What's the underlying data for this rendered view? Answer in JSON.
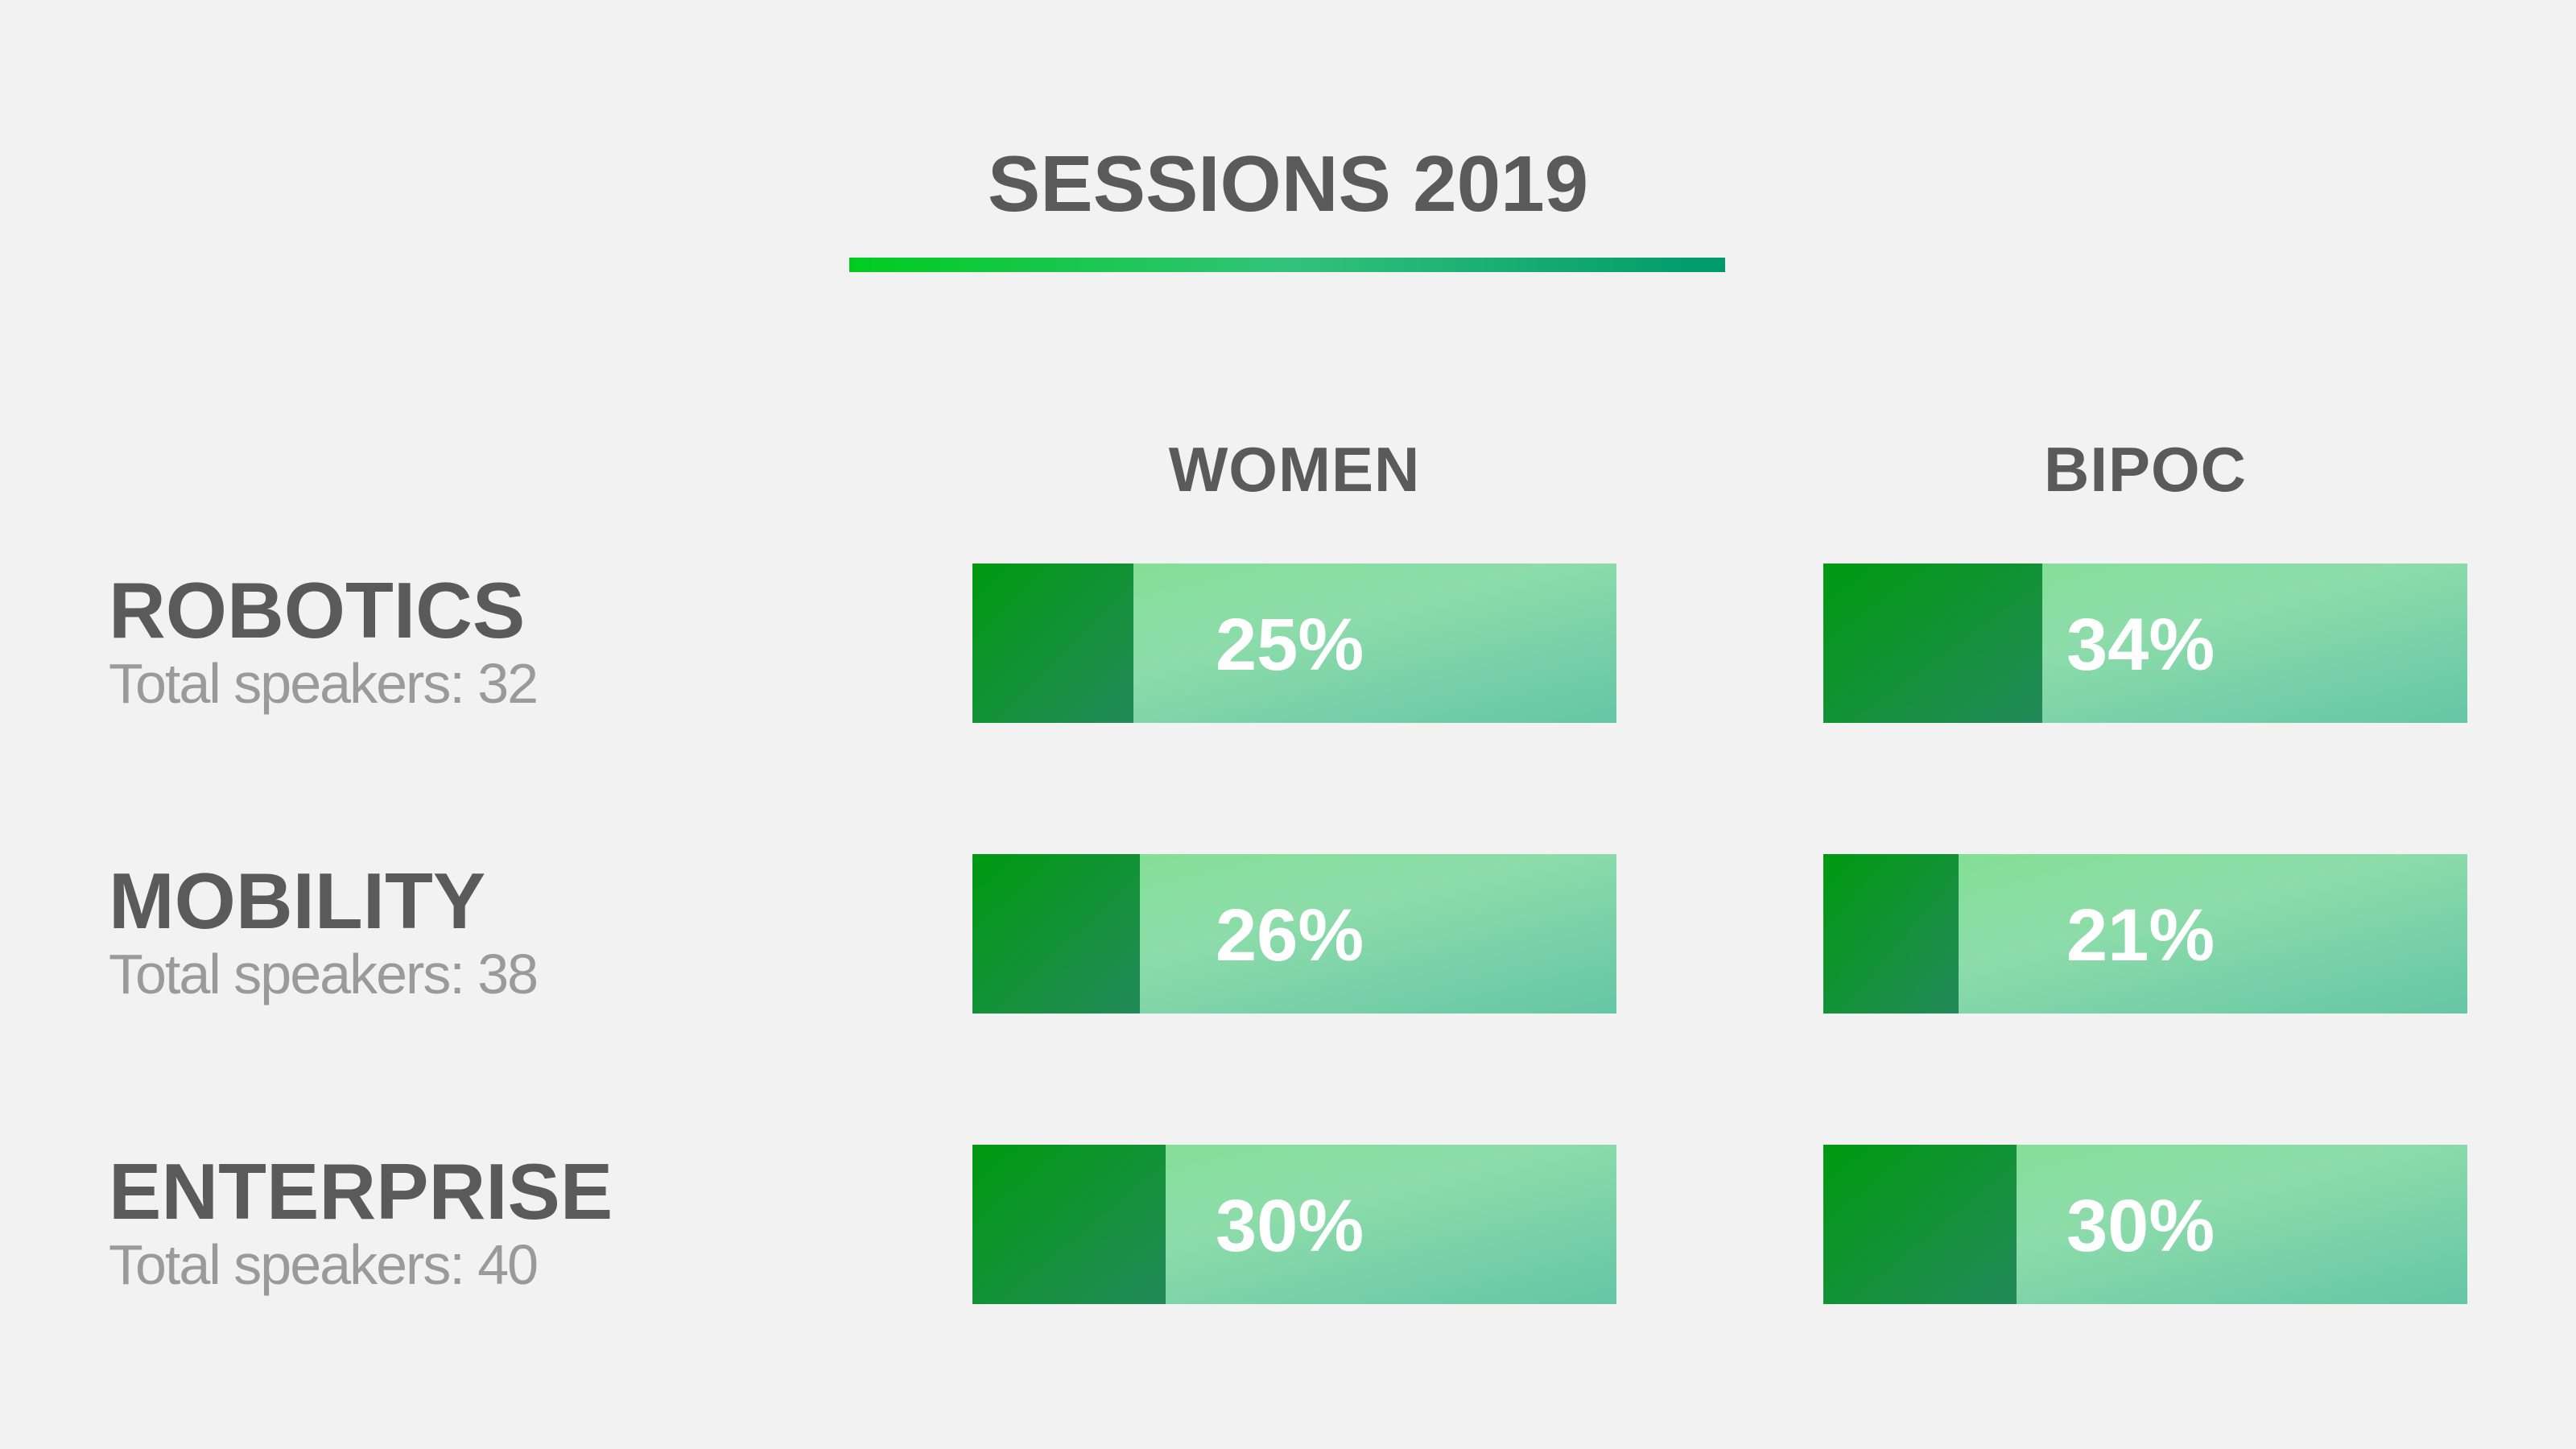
{
  "chart_data": {
    "type": "bar",
    "title": "SESSIONS 2019",
    "categories": [
      "ROBOTICS",
      "MOBILITY",
      "ENTERPRISE"
    ],
    "category_notes": [
      "Total speakers: 32",
      "Total speakers: 38",
      "Total speakers: 40"
    ],
    "xlim": [
      0,
      100
    ],
    "series": [
      {
        "name": "WOMEN",
        "color": "#138f2e",
        "values": [
          25,
          26,
          30
        ],
        "value_labels": [
          "25%",
          "26%",
          "30%"
        ]
      },
      {
        "name": "BIPOC",
        "color": "#138f2e",
        "values": [
          34,
          21,
          30
        ],
        "value_labels": [
          "34%",
          "21%",
          "30%"
        ]
      }
    ]
  }
}
